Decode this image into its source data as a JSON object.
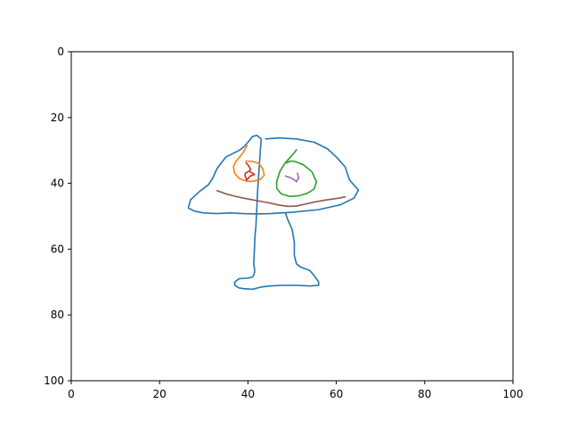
{
  "chart_data": {
    "type": "line",
    "title": "",
    "xlabel": "",
    "ylabel": "",
    "xlim": [
      0,
      100
    ],
    "ylim": [
      100,
      0
    ],
    "y_inverted": true,
    "grid": false,
    "legend": "none",
    "x_ticks": [
      0,
      20,
      40,
      60,
      80,
      100
    ],
    "y_ticks": [
      0,
      20,
      40,
      60,
      80,
      100
    ],
    "series": [
      {
        "color": "#1f77b4",
        "x": [
          44,
          47,
          51,
          55,
          58,
          60,
          62,
          63,
          65,
          64,
          61,
          56,
          50,
          45,
          42,
          39,
          36,
          33,
          30,
          28,
          26.5,
          27,
          29,
          31,
          32,
          33,
          35,
          38,
          39,
          40,
          41,
          42,
          43,
          42.8,
          42.5,
          42.2,
          42,
          41.8,
          41.6,
          41.5,
          41.4,
          41.3,
          41.5,
          41.5,
          41.3,
          41,
          40,
          38,
          37,
          37,
          38,
          39,
          41,
          43,
          45,
          48,
          51,
          54,
          56,
          56,
          55,
          54,
          53,
          52,
          51,
          50.5,
          50.5,
          50,
          49,
          48.5
        ],
        "y": [
          26.5,
          26.2,
          26.5,
          27.5,
          29.5,
          32,
          35,
          39,
          42,
          44.5,
          46.5,
          48,
          48.8,
          49.2,
          49.3,
          49.2,
          49,
          49.2,
          49,
          48.5,
          47.5,
          45,
          42.5,
          40.5,
          38.5,
          35.5,
          32,
          30,
          29,
          27.5,
          25.8,
          25.4,
          26.5,
          30,
          36,
          42,
          48,
          53,
          56,
          59,
          62,
          64.5,
          66,
          67,
          68,
          68.5,
          68.8,
          69,
          70,
          71,
          71.8,
          72,
          72.2,
          71.5,
          71.2,
          71,
          71,
          71.2,
          71,
          70,
          68,
          66.5,
          66,
          65.5,
          64.5,
          62,
          58,
          54,
          51,
          49
        ]
      },
      {
        "color": "#ff7f0e",
        "x": [
          39.8,
          39,
          38,
          37.2,
          36.7,
          37,
          38,
          39.5,
          41,
          42.8,
          43.7,
          43.3,
          42.5,
          41,
          39.5
        ],
        "y": [
          28.5,
          30.5,
          32.2,
          33.5,
          35,
          37,
          38.5,
          39.3,
          39.4,
          38.8,
          37.5,
          35.5,
          34,
          33.3,
          33.3
        ]
      },
      {
        "color": "#2ca02c",
        "x": [
          51,
          50.3,
          49.5,
          48.3,
          47.2,
          46.5,
          46.5,
          47.5,
          49.5,
          51.5,
          53.5,
          55,
          55.5,
          54.5,
          52.5,
          50.5,
          49.5,
          48.8
        ],
        "y": [
          29.8,
          31,
          32.2,
          34,
          36.5,
          39.5,
          41.5,
          43.2,
          44,
          43.8,
          43,
          41.7,
          39.5,
          36.5,
          34.3,
          33.3,
          33.3,
          33.8
        ]
      },
      {
        "color": "#d62728",
        "x": [
          39.6,
          40.1,
          40.6,
          40.3,
          39.5,
          39.3,
          39.7,
          40.5,
          41.5,
          40.5
        ],
        "y": [
          33.8,
          34.6,
          35.7,
          36.3,
          36.8,
          37.5,
          39.0,
          37.8,
          37.3,
          36.5
        ]
      },
      {
        "color": "#9467bd",
        "x": [
          48.5,
          49.7,
          50.7,
          51,
          51.2,
          51.5,
          51.2
        ],
        "y": [
          37.8,
          38.3,
          39.1,
          39.5,
          39.0,
          38.3,
          36.9
        ]
      },
      {
        "color": "#8c564b",
        "x": [
          33,
          35,
          37,
          39,
          41,
          43,
          45,
          47,
          49,
          51,
          53,
          55,
          57,
          59,
          61,
          62
        ],
        "y": [
          42.2,
          43.2,
          43.9,
          44.5,
          45,
          45.5,
          46,
          46.6,
          47,
          46.9,
          46.3,
          45.7,
          45.2,
          44.8,
          44.4,
          44.1
        ]
      }
    ]
  }
}
